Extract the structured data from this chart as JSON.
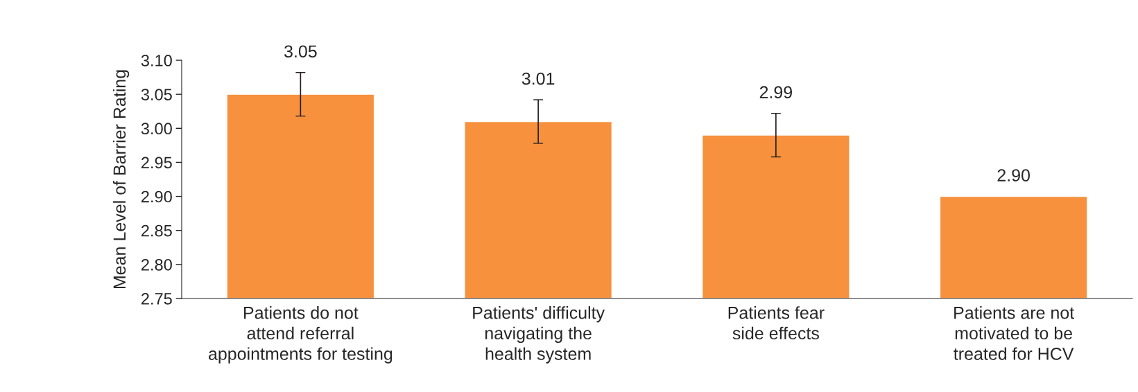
{
  "chart_data": {
    "type": "bar",
    "ylabel": "Mean Level of Barrier Rating",
    "categories": [
      "Patients do not\nattend referral\nappointments for testing",
      "Patients' difficulty\nnavigating the\nhealth system",
      "Patients fear\nside effects",
      "Patients are not\nmotivated to be\ntreated for HCV"
    ],
    "values": [
      3.05,
      3.01,
      2.99,
      2.9
    ],
    "errors": [
      0.032,
      0.032,
      0.032,
      null
    ],
    "color": "#f7913d",
    "value_labels": [
      "3.05",
      "3.01",
      "2.99",
      "2.90"
    ],
    "ylim": [
      2.75,
      3.1
    ],
    "yticks": [
      {
        "value": 2.75,
        "label": "2.75"
      },
      {
        "value": 2.8,
        "label": "2.80"
      },
      {
        "value": 2.85,
        "label": "2.85"
      },
      {
        "value": 2.9,
        "label": "2.90"
      },
      {
        "value": 2.95,
        "label": "2.95"
      },
      {
        "value": 3.0,
        "label": "3.00"
      },
      {
        "value": 3.05,
        "label": "3.05"
      },
      {
        "value": 3.1,
        "label": "3.10"
      }
    ],
    "grid": false,
    "legend": false
  }
}
